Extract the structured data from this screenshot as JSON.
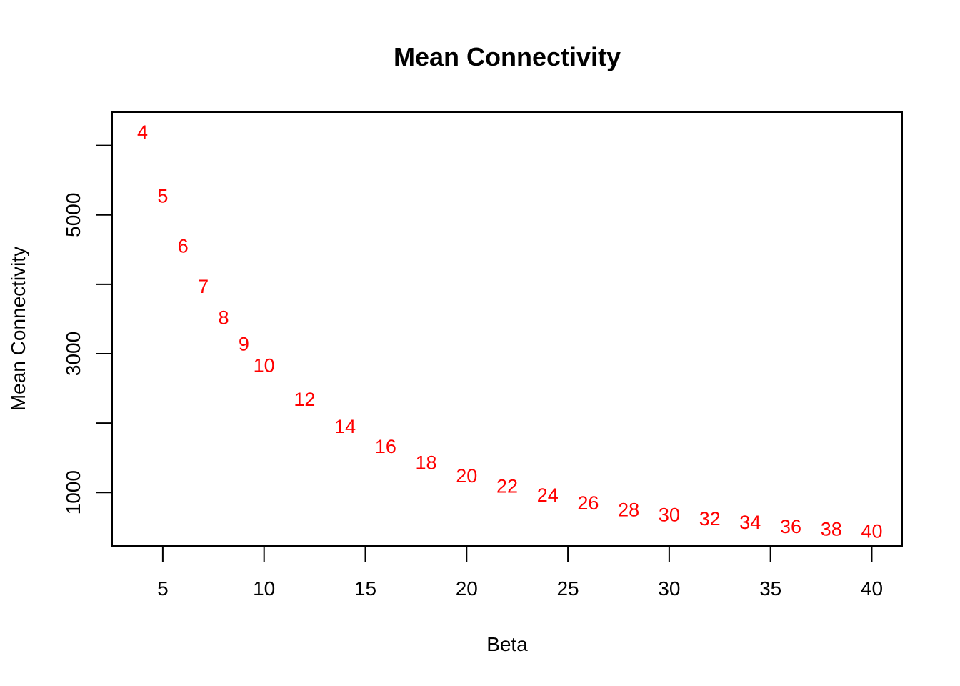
{
  "chart_data": {
    "type": "scatter",
    "title": "Mean Connectivity",
    "xlabel": "Beta",
    "ylabel": "Mean Connectivity",
    "xlim": [
      2.5,
      41.5
    ],
    "ylim": [
      230,
      6480
    ],
    "x_ticks": [
      5,
      10,
      15,
      20,
      25,
      30,
      35,
      40
    ],
    "y_ticks": [
      1000,
      3000,
      5000
    ],
    "y_minor_ticks": [
      2000,
      4000,
      6000
    ],
    "grid": false,
    "marker": "text-labels",
    "point_color": "#ff0000",
    "series": [
      {
        "x": [
          4,
          5,
          6,
          7,
          8,
          9,
          10,
          12,
          14,
          16,
          18,
          20,
          22,
          24,
          26,
          28,
          30,
          32,
          34,
          36,
          38,
          40
        ],
        "y": [
          6190,
          5270,
          4550,
          3970,
          3520,
          3140,
          2830,
          2340,
          1950,
          1660,
          1430,
          1240,
          1090,
          960,
          850,
          750,
          680,
          620,
          570,
          510,
          470,
          440
        ],
        "labels": [
          "4",
          "5",
          "6",
          "7",
          "8",
          "9",
          "10",
          "12",
          "14",
          "16",
          "18",
          "20",
          "22",
          "24",
          "26",
          "28",
          "30",
          "32",
          "34",
          "36",
          "38",
          "40"
        ]
      }
    ]
  }
}
